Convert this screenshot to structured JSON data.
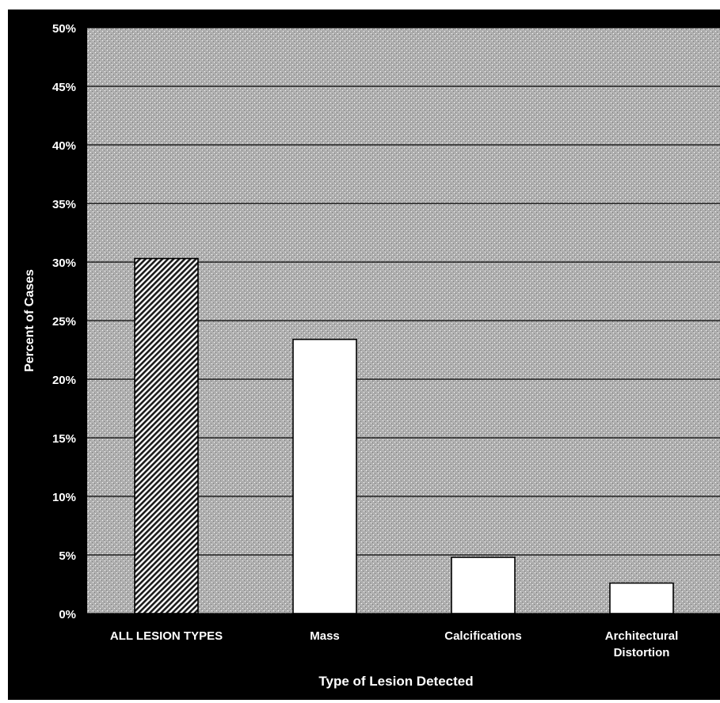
{
  "chart_data": {
    "type": "bar",
    "title": "",
    "xlabel": "Type of Lesion Detected",
    "ylabel": "Percent of Cases",
    "ylim": [
      0,
      50
    ],
    "yticks": [
      "0%",
      "5%",
      "10%",
      "15%",
      "20%",
      "25%",
      "30%",
      "35%",
      "40%",
      "45%",
      "50%"
    ],
    "categories": [
      "ALL LESION TYPES",
      "Mass",
      "Calcifications",
      "Architectural Distortion"
    ],
    "category_lines": [
      [
        "ALL LESION TYPES"
      ],
      [
        "Mass"
      ],
      [
        "Calcifications"
      ],
      [
        "Architectural",
        "Distortion"
      ]
    ],
    "values": [
      30.3,
      23.4,
      4.8,
      2.6
    ],
    "bar_styles": [
      "hatched",
      "plain",
      "plain",
      "plain"
    ],
    "grid": true,
    "legend": "none"
  },
  "colors": {
    "background": "#000000",
    "plot_area": "#b3b3b3",
    "bar_fill": "#ffffff",
    "grid": "#000000",
    "text": "#ffffff"
  }
}
